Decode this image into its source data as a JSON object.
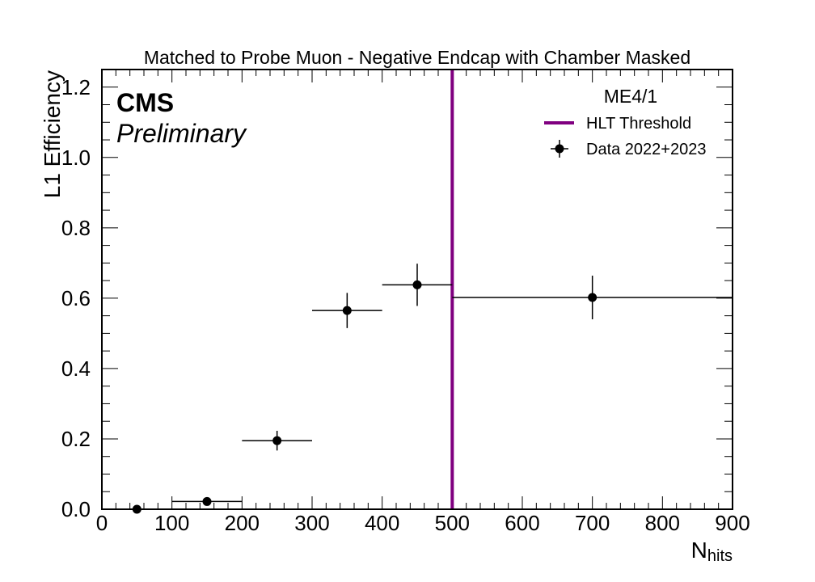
{
  "chart_data": {
    "type": "scatter",
    "title": "Matched to Probe Muon - Negative Endcap with Chamber Masked",
    "xlabel_main": "N",
    "xlabel_sub": "hits",
    "ylabel": "L1 Efficiency",
    "xlim": [
      0,
      900
    ],
    "ylim": [
      0,
      1.25
    ],
    "x_ticks": [
      0,
      100,
      200,
      300,
      400,
      500,
      600,
      700,
      800,
      900
    ],
    "y_ticks": [
      0.0,
      0.2,
      0.4,
      0.6,
      0.8,
      1.0,
      1.2
    ],
    "y_tick_labels": [
      "0.0",
      "0.2",
      "0.4",
      "0.6",
      "0.8",
      "1.0",
      "1.2"
    ],
    "experiment_label": "CMS",
    "status_label": "Preliminary",
    "legend_header": "ME4/1",
    "legend_placement": "top-right",
    "grid": false,
    "series": [
      {
        "name": "Data 2022+2023",
        "color": "#000000",
        "points": [
          {
            "x": 50,
            "xlow": 0,
            "xhigh": 100,
            "y": 0.0,
            "yerr": 0.0
          },
          {
            "x": 150,
            "xlow": 100,
            "xhigh": 200,
            "y": 0.022,
            "yerr": 0.0
          },
          {
            "x": 250,
            "xlow": 200,
            "xhigh": 300,
            "y": 0.195,
            "yerr": 0.028
          },
          {
            "x": 350,
            "xlow": 300,
            "xhigh": 400,
            "y": 0.565,
            "yerr": 0.05
          },
          {
            "x": 450,
            "xlow": 400,
            "xhigh": 500,
            "y": 0.638,
            "yerr": 0.06
          },
          {
            "x": 700,
            "xlow": 500,
            "xhigh": 900,
            "y": 0.602,
            "yerr": 0.062
          }
        ]
      }
    ],
    "threshold": {
      "name": "HLT Threshold",
      "x": 500,
      "color": "#800080"
    }
  }
}
